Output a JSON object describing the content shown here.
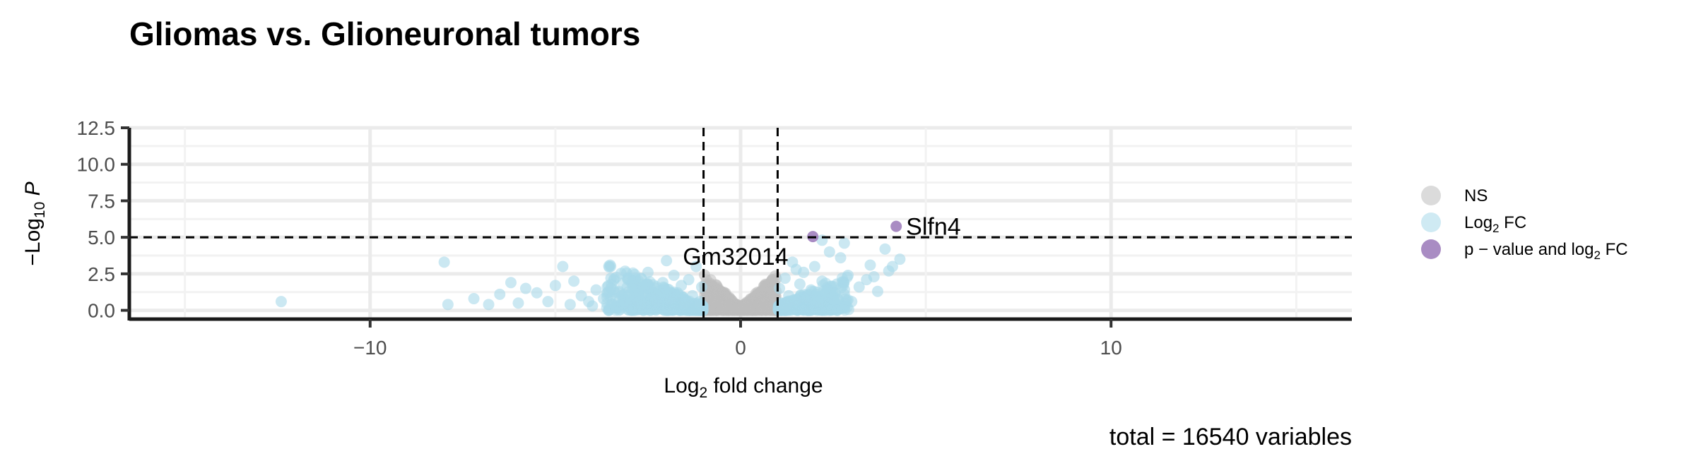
{
  "chart_data": {
    "type": "scatter",
    "title": "Gliomas vs. Glioneuronal tumors",
    "xlabel": "Log2 fold change",
    "ylabel": "−Log10 P",
    "xlim": [
      -16.5,
      16.5
    ],
    "ylim": [
      -0.6,
      12.5
    ],
    "x_ticks": [
      -10,
      0,
      10
    ],
    "x_tick_labels": [
      "−10",
      "0",
      "10"
    ],
    "y_ticks": [
      0,
      2.5,
      5,
      7.5,
      10,
      12.5
    ],
    "y_tick_labels": [
      "0.0",
      "2.5",
      "5.0",
      "7.5",
      "10.0",
      "12.5"
    ],
    "grid": true,
    "legend_position": "right",
    "fc_cutoff": 1,
    "p_cutoff_log10": 5,
    "caption": "total = 16540 variables",
    "legend": [
      {
        "key": "NS",
        "label": "NS",
        "color": "#bdbdbd"
      },
      {
        "key": "FC",
        "label": "Log",
        "sub": "2",
        "suffix": " FC",
        "color": "#a8d8ea"
      },
      {
        "key": "PFC",
        "label": "p − value and log",
        "sub": "2",
        "suffix": " FC",
        "color": "#9a78b8"
      }
    ],
    "series": [
      {
        "name": "Log2 FC",
        "color": "#a8d8ea",
        "points": [
          [
            -12.4,
            0.6
          ],
          [
            -7.9,
            0.4
          ],
          [
            -8.0,
            3.3
          ],
          [
            -7.2,
            0.8
          ],
          [
            -6.8,
            0.4
          ],
          [
            -6.5,
            1.1
          ],
          [
            -6.2,
            1.9
          ],
          [
            -6.0,
            0.5
          ],
          [
            -5.8,
            1.5
          ],
          [
            -5.5,
            1.2
          ],
          [
            -5.2,
            0.6
          ],
          [
            -5.0,
            1.7
          ],
          [
            -4.8,
            3.0
          ],
          [
            -4.6,
            0.4
          ],
          [
            -4.5,
            2.0
          ],
          [
            -4.3,
            1.0
          ],
          [
            -4.1,
            0.6
          ],
          [
            -3.9,
            1.4
          ],
          [
            -3.7,
            0.8
          ],
          [
            -3.5,
            2.2
          ],
          [
            -3.3,
            1.2
          ],
          [
            -3.1,
            0.5
          ],
          [
            -2.9,
            2.0
          ],
          [
            -2.8,
            0.9
          ],
          [
            -2.6,
            1.6
          ],
          [
            -2.5,
            2.6
          ],
          [
            -2.3,
            0.7
          ],
          [
            -2.2,
            1.3
          ],
          [
            -2.1,
            1.9
          ],
          [
            -2.0,
            3.4
          ],
          [
            -1.9,
            0.8
          ],
          [
            -1.8,
            2.4
          ],
          [
            -1.7,
            1.2
          ],
          [
            -1.6,
            1.7
          ],
          [
            -1.5,
            0.5
          ],
          [
            -1.4,
            2.1
          ],
          [
            -1.3,
            1.0
          ],
          [
            -1.2,
            3.0
          ],
          [
            -1.1,
            0.6
          ],
          [
            -1.05,
            1.6
          ],
          [
            -2.7,
            0.4
          ],
          [
            -3.6,
            1.6
          ],
          [
            -4.0,
            0.3
          ],
          [
            1.05,
            1.5
          ],
          [
            1.1,
            0.5
          ],
          [
            1.2,
            2.2
          ],
          [
            1.3,
            1.0
          ],
          [
            1.4,
            3.3
          ],
          [
            1.5,
            0.7
          ],
          [
            1.6,
            1.8
          ],
          [
            1.7,
            2.6
          ],
          [
            1.8,
            0.9
          ],
          [
            1.9,
            1.4
          ],
          [
            2.0,
            3.0
          ],
          [
            2.1,
            0.6
          ],
          [
            2.2,
            2.0
          ],
          [
            2.3,
            1.2
          ],
          [
            2.4,
            4.0
          ],
          [
            2.5,
            0.8
          ],
          [
            2.6,
            1.8
          ],
          [
            2.7,
            3.6
          ],
          [
            2.8,
            1.1
          ],
          [
            2.9,
            2.4
          ],
          [
            3.0,
            0.6
          ],
          [
            3.2,
            1.6
          ],
          [
            3.4,
            2.1
          ],
          [
            3.5,
            3.1
          ],
          [
            3.7,
            1.3
          ],
          [
            3.9,
            4.2
          ],
          [
            4.0,
            2.7
          ],
          [
            4.1,
            3.0
          ],
          [
            4.3,
            3.5
          ],
          [
            2.2,
            4.8
          ],
          [
            2.8,
            4.6
          ],
          [
            3.6,
            2.3
          ],
          [
            1.5,
            2.8
          ],
          [
            1.25,
            0.4
          ],
          [
            2.05,
            1.1
          ]
        ]
      },
      {
        "name": "p − value and log2 FC",
        "color": "#9a78b8",
        "points": [
          [
            1.95,
            5.05
          ],
          [
            4.2,
            5.75
          ]
        ]
      }
    ],
    "ns_region": {
      "color": "#bdbdbd",
      "x_range": [
        -1,
        1
      ],
      "label": "NS"
    },
    "annotations": [
      {
        "text": "Slfn4",
        "x": 4.2,
        "y": 5.75
      },
      {
        "text": "Gm32014",
        "x": 1.95,
        "y": 5.05
      }
    ]
  }
}
